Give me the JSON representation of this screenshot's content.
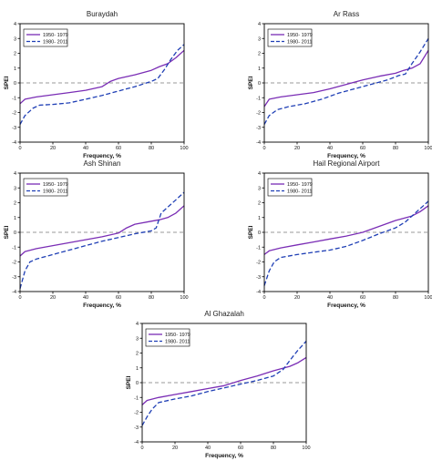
{
  "chart_data": [
    {
      "type": "line",
      "title": "Buraydah",
      "xlabel": "Frequency, %",
      "ylabel": "SPEI",
      "xlim": [
        0,
        100
      ],
      "ylim": [
        -4,
        4
      ],
      "xticks": [
        "0",
        "20",
        "40",
        "60",
        "80",
        "100"
      ],
      "yticks": [
        "-4",
        "-3",
        "-2",
        "-1",
        "0",
        "1",
        "2",
        "3",
        "4"
      ],
      "reference_line": 0,
      "legend": "top-left",
      "series": [
        {
          "name": "1950- 1979",
          "color": "#7a2db5",
          "dash": "solid",
          "x": [
            0,
            3,
            10,
            20,
            30,
            40,
            50,
            55,
            60,
            70,
            80,
            85,
            90,
            95,
            100
          ],
          "y": [
            -1.4,
            -1.1,
            -0.95,
            -0.8,
            -0.65,
            -0.5,
            -0.25,
            0.1,
            0.3,
            0.55,
            0.85,
            1.1,
            1.3,
            1.7,
            2.2
          ]
        },
        {
          "name": "1980- 2011",
          "color": "#1f3fb5",
          "dash": "dashed",
          "x": [
            0,
            3,
            8,
            12,
            20,
            30,
            40,
            50,
            60,
            70,
            80,
            84,
            88,
            92,
            96,
            100
          ],
          "y": [
            -2.8,
            -2.2,
            -1.7,
            -1.5,
            -1.45,
            -1.35,
            -1.1,
            -0.85,
            -0.55,
            -0.25,
            0.1,
            0.3,
            0.9,
            1.6,
            2.2,
            2.6
          ]
        }
      ]
    },
    {
      "type": "line",
      "title": "Ar Rass",
      "xlabel": "Frequency, %",
      "ylabel": "SPEI",
      "xlim": [
        0,
        100
      ],
      "ylim": [
        -4,
        4
      ],
      "xticks": [
        "0",
        "20",
        "40",
        "60",
        "80",
        "100"
      ],
      "yticks": [
        "-4",
        "-3",
        "-2",
        "-1",
        "0",
        "1",
        "2",
        "3",
        "4"
      ],
      "reference_line": 0,
      "legend": "top-left",
      "series": [
        {
          "name": "1950- 1979",
          "color": "#7a2db5",
          "dash": "solid",
          "x": [
            0,
            3,
            10,
            20,
            30,
            40,
            50,
            60,
            70,
            80,
            85,
            90,
            95,
            100
          ],
          "y": [
            -1.6,
            -1.1,
            -0.95,
            -0.8,
            -0.65,
            -0.4,
            -0.1,
            0.2,
            0.45,
            0.65,
            0.85,
            1.0,
            1.3,
            2.2
          ]
        },
        {
          "name": "1980- 2011",
          "color": "#1f3fb5",
          "dash": "dashed",
          "x": [
            0,
            3,
            8,
            15,
            25,
            35,
            45,
            55,
            65,
            75,
            82,
            86,
            90,
            95,
            100
          ],
          "y": [
            -2.8,
            -2.2,
            -1.8,
            -1.6,
            -1.4,
            -1.1,
            -0.7,
            -0.4,
            -0.1,
            0.2,
            0.5,
            0.6,
            1.3,
            2.1,
            3.0
          ]
        }
      ]
    },
    {
      "type": "line",
      "title": "Ash Shinan",
      "xlabel": "Frequency, %",
      "ylabel": "SPEI",
      "xlim": [
        0,
        100
      ],
      "ylim": [
        -4,
        4
      ],
      "xticks": [
        "0",
        "20",
        "40",
        "60",
        "80",
        "100"
      ],
      "yticks": [
        "-4",
        "-3",
        "-2",
        "-1",
        "0",
        "1",
        "2",
        "3",
        "4"
      ],
      "reference_line": 0,
      "legend": "top-left",
      "series": [
        {
          "name": "1950- 1979",
          "color": "#7a2db5",
          "dash": "solid",
          "x": [
            0,
            3,
            10,
            20,
            30,
            40,
            50,
            60,
            65,
            70,
            80,
            85,
            90,
            95,
            100
          ],
          "y": [
            -1.6,
            -1.3,
            -1.1,
            -0.9,
            -0.7,
            -0.5,
            -0.3,
            -0.05,
            0.3,
            0.55,
            0.75,
            0.85,
            1.0,
            1.3,
            1.8
          ]
        },
        {
          "name": "1980- 2011",
          "color": "#1f3fb5",
          "dash": "dashed",
          "x": [
            0,
            3,
            6,
            10,
            20,
            30,
            40,
            50,
            60,
            70,
            80,
            83,
            86,
            90,
            95,
            100
          ],
          "y": [
            -3.8,
            -2.6,
            -2.0,
            -1.8,
            -1.5,
            -1.2,
            -0.9,
            -0.6,
            -0.35,
            -0.1,
            0.1,
            0.3,
            1.3,
            1.7,
            2.2,
            2.7
          ]
        }
      ]
    },
    {
      "type": "line",
      "title": "Hail Regional Airport",
      "xlabel": "Frequency, %",
      "ylabel": "SPEI",
      "xlim": [
        0,
        100
      ],
      "ylim": [
        -4,
        4
      ],
      "xticks": [
        "0",
        "20",
        "40",
        "60",
        "80",
        "100"
      ],
      "yticks": [
        "-4",
        "-3",
        "-2",
        "-1",
        "0",
        "1",
        "2",
        "3",
        "4"
      ],
      "reference_line": 0,
      "legend": "top-left",
      "series": [
        {
          "name": "1950- 1979",
          "color": "#7a2db5",
          "dash": "solid",
          "x": [
            0,
            3,
            10,
            20,
            30,
            40,
            50,
            60,
            70,
            80,
            90,
            95,
            100
          ],
          "y": [
            -1.5,
            -1.25,
            -1.05,
            -0.85,
            -0.65,
            -0.45,
            -0.25,
            0.0,
            0.4,
            0.8,
            1.1,
            1.4,
            1.8
          ]
        },
        {
          "name": "1980- 2011",
          "color": "#1f3fb5",
          "dash": "dashed",
          "x": [
            0,
            3,
            6,
            10,
            20,
            30,
            40,
            50,
            60,
            70,
            80,
            86,
            90,
            95,
            100
          ],
          "y": [
            -3.6,
            -2.6,
            -2.0,
            -1.7,
            -1.5,
            -1.35,
            -1.2,
            -0.95,
            -0.55,
            -0.1,
            0.3,
            0.7,
            1.1,
            1.6,
            2.1
          ]
        }
      ]
    },
    {
      "type": "line",
      "title": "Al Ghazalah",
      "xlabel": "Frequency, %",
      "ylabel": "SPEI",
      "xlim": [
        0,
        100
      ],
      "ylim": [
        -4,
        4
      ],
      "xticks": [
        "0",
        "20",
        "40",
        "60",
        "80",
        "100"
      ],
      "yticks": [
        "-4",
        "-3",
        "-2",
        "-1",
        "0",
        "1",
        "2",
        "3",
        "4"
      ],
      "reference_line": 0,
      "legend": "top-left",
      "series": [
        {
          "name": "1950- 1979",
          "color": "#7a2db5",
          "dash": "solid",
          "x": [
            0,
            3,
            10,
            20,
            30,
            40,
            50,
            60,
            70,
            80,
            90,
            95,
            100
          ],
          "y": [
            -1.5,
            -1.2,
            -1.0,
            -0.8,
            -0.6,
            -0.4,
            -0.2,
            0.15,
            0.45,
            0.8,
            1.1,
            1.35,
            1.7
          ]
        },
        {
          "name": "1980- 2011",
          "color": "#1f3fb5",
          "dash": "dashed",
          "x": [
            0,
            3,
            6,
            10,
            20,
            30,
            40,
            50,
            60,
            70,
            80,
            86,
            90,
            95,
            100
          ],
          "y": [
            -2.9,
            -2.3,
            -1.8,
            -1.35,
            -1.1,
            -0.9,
            -0.6,
            -0.35,
            -0.1,
            0.15,
            0.45,
            0.9,
            1.5,
            2.2,
            2.8
          ]
        }
      ]
    }
  ]
}
